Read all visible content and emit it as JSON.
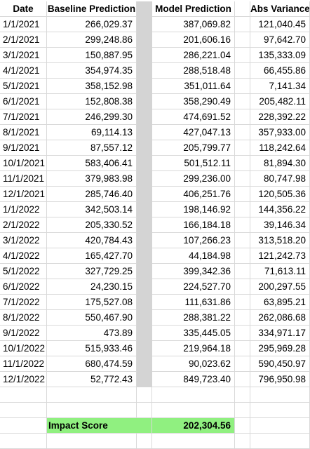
{
  "headers": {
    "date": "Date",
    "baseline": "Baseline Prediction",
    "model": "Model Prediction",
    "variance": "Abs Variance"
  },
  "rows": [
    {
      "date": "1/1/2021",
      "baseline": "266,029.37",
      "model": "387,069.82",
      "variance": "121,040.45"
    },
    {
      "date": "2/1/2021",
      "baseline": "299,248.86",
      "model": "201,606.16",
      "variance": "97,642.70"
    },
    {
      "date": "3/1/2021",
      "baseline": "150,887.95",
      "model": "286,221.04",
      "variance": "135,333.09"
    },
    {
      "date": "4/1/2021",
      "baseline": "354,974.35",
      "model": "288,518.48",
      "variance": "66,455.86"
    },
    {
      "date": "5/1/2021",
      "baseline": "358,152.98",
      "model": "351,011.64",
      "variance": "7,141.34"
    },
    {
      "date": "6/1/2021",
      "baseline": "152,808.38",
      "model": "358,290.49",
      "variance": "205,482.11"
    },
    {
      "date": "7/1/2021",
      "baseline": "246,299.30",
      "model": "474,691.52",
      "variance": "228,392.22"
    },
    {
      "date": "8/1/2021",
      "baseline": "69,114.13",
      "model": "427,047.13",
      "variance": "357,933.00"
    },
    {
      "date": "9/1/2021",
      "baseline": "87,557.12",
      "model": "205,799.77",
      "variance": "118,242.64"
    },
    {
      "date": "10/1/2021",
      "baseline": "583,406.41",
      "model": "501,512.11",
      "variance": "81,894.30"
    },
    {
      "date": "11/1/2021",
      "baseline": "379,983.98",
      "model": "299,236.00",
      "variance": "80,747.98"
    },
    {
      "date": "12/1/2021",
      "baseline": "285,746.40",
      "model": "406,251.76",
      "variance": "120,505.36"
    },
    {
      "date": "1/1/2022",
      "baseline": "342,503.14",
      "model": "198,146.92",
      "variance": "144,356.22"
    },
    {
      "date": "2/1/2022",
      "baseline": "205,330.52",
      "model": "166,184.18",
      "variance": "39,146.34"
    },
    {
      "date": "3/1/2022",
      "baseline": "420,784.43",
      "model": "107,266.23",
      "variance": "313,518.20"
    },
    {
      "date": "4/1/2022",
      "baseline": "165,427.70",
      "model": "44,184.98",
      "variance": "121,242.73"
    },
    {
      "date": "5/1/2022",
      "baseline": "327,729.25",
      "model": "399,342.36",
      "variance": "71,613.11"
    },
    {
      "date": "6/1/2022",
      "baseline": "24,230.15",
      "model": "224,527.70",
      "variance": "200,297.55"
    },
    {
      "date": "7/1/2022",
      "baseline": "175,527.08",
      "model": "111,631.86",
      "variance": "63,895.21"
    },
    {
      "date": "8/1/2022",
      "baseline": "550,467.90",
      "model": "288,381.22",
      "variance": "262,086.68"
    },
    {
      "date": "9/1/2022",
      "baseline": "473.89",
      "model": "335,445.05",
      "variance": "334,971.17"
    },
    {
      "date": "10/1/2022",
      "baseline": "515,933.46",
      "model": "219,964.18",
      "variance": "295,969.28"
    },
    {
      "date": "11/1/2022",
      "baseline": "680,474.59",
      "model": "90,023.62",
      "variance": "590,450.97"
    },
    {
      "date": "12/1/2022",
      "baseline": "52,772.43",
      "model": "849,723.40",
      "variance": "796,950.98"
    }
  ],
  "impact": {
    "label": "Impact Score",
    "value": "202,304.56",
    "color": "#90f080"
  },
  "gap_column_color": "#d4d4d4"
}
